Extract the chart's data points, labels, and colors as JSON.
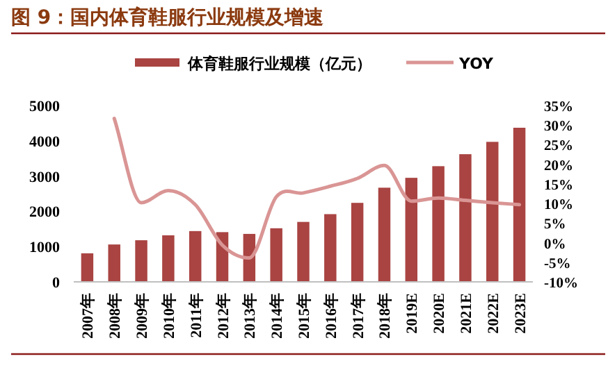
{
  "chart_data": {
    "type": "bar",
    "title": "图 9：国内体育鞋服行业规模及增速",
    "categories": [
      "2007年",
      "2008年",
      "2009年",
      "2010年",
      "2011年",
      "2012年",
      "2013年",
      "2014年",
      "2015年",
      "2016年",
      "2017年",
      "2018年",
      "2019E",
      "2020E",
      "2021E",
      "2022E",
      "2023E"
    ],
    "series": [
      {
        "name": "体育鞋服行业规模（亿元）",
        "color": "#a94442",
        "values": [
          810,
          1060,
          1180,
          1320,
          1440,
          1410,
          1360,
          1520,
          1700,
          1920,
          2240,
          2670,
          2950,
          3280,
          3620,
          3970,
          4370
        ]
      },
      {
        "name": "YOY",
        "type": "line",
        "axis": "y2",
        "color": "#d99594",
        "values": [
          null,
          31.7,
          10.2,
          13.3,
          9.7,
          -0.6,
          -3.9,
          11.7,
          12.7,
          14.4,
          16.4,
          19.7,
          10.6,
          11.4,
          10.8,
          10.2,
          9.7
        ]
      }
    ],
    "ylim": [
      0,
      5000
    ],
    "yticks": [
      0,
      1000,
      2000,
      3000,
      4000,
      5000
    ],
    "y2lim": [
      -10,
      35
    ],
    "y2ticks": [
      {
        "value": -10,
        "label": "-10%"
      },
      {
        "value": -5,
        "label": "-5%"
      },
      {
        "value": 0,
        "label": "0%"
      },
      {
        "value": 5,
        "label": "5%"
      },
      {
        "value": 10,
        "label": "10%"
      },
      {
        "value": 15,
        "label": "15%"
      },
      {
        "value": 20,
        "label": "20%"
      },
      {
        "value": 25,
        "label": "25%"
      },
      {
        "value": 30,
        "label": "30%"
      },
      {
        "value": 35,
        "label": "35%"
      }
    ],
    "legend": "top",
    "grid": false,
    "marker": "none",
    "line_style": "solid"
  }
}
